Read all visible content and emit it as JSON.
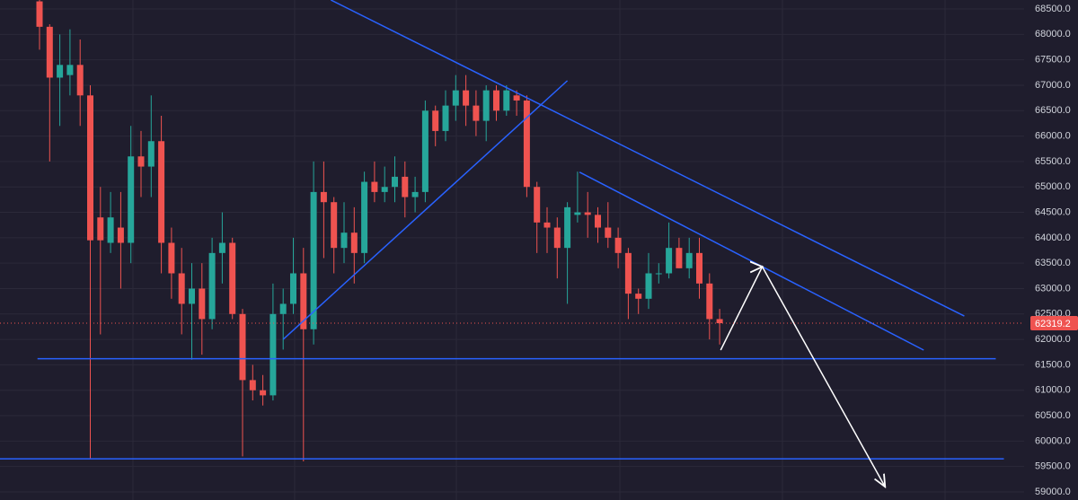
{
  "chart_data": {
    "type": "candlestick",
    "up_color": "#26a69a",
    "down_color": "#ef5350",
    "ylim": [
      58841,
      68677
    ],
    "yticks": [
      {
        "value": 59000,
        "label": "59000.0"
      },
      {
        "value": 59500,
        "label": "59500.0"
      },
      {
        "value": 60000,
        "label": "60000.0"
      },
      {
        "value": 60500,
        "label": "60500.0"
      },
      {
        "value": 61000,
        "label": "61000.0"
      },
      {
        "value": 61500,
        "label": "61500.0"
      },
      {
        "value": 62000,
        "label": "62000.0"
      },
      {
        "value": 62500,
        "label": "62500.0"
      },
      {
        "value": 63000,
        "label": "63000.0"
      },
      {
        "value": 63500,
        "label": "63500.0"
      },
      {
        "value": 64000,
        "label": "64000.0"
      },
      {
        "value": 64500,
        "label": "64500.0"
      },
      {
        "value": 65000,
        "label": "65000.0"
      },
      {
        "value": 65500,
        "label": "65500.0"
      },
      {
        "value": 66000,
        "label": "66000.0"
      },
      {
        "value": 66500,
        "label": "66500.0"
      },
      {
        "value": 67000,
        "label": "67000.0"
      },
      {
        "value": 67500,
        "label": "67500.0"
      },
      {
        "value": 68000,
        "label": "68000.0"
      },
      {
        "value": 68500,
        "label": "68500.0"
      }
    ],
    "grid": true,
    "open": [
      68650,
      68150,
      67150,
      67200,
      67400,
      66800,
      64400,
      63900,
      64200,
      63900,
      65600,
      65400,
      65900,
      63900,
      63300,
      62700,
      63000,
      62400,
      63700,
      63900,
      62500,
      61200,
      61000,
      60900,
      62500,
      62700,
      63300,
      62200,
      64900,
      64700,
      63800,
      64100,
      63700,
      65100,
      64900,
      65000,
      65200,
      64800,
      64900,
      66500,
      66100,
      66600,
      66900,
      66600,
      66300,
      66900,
      66500,
      66800,
      66700,
      65000,
      64300,
      64200,
      63800,
      64450,
      64500,
      64450,
      64200,
      64000,
      63700,
      62900,
      62800,
      63300,
      63300,
      63800,
      63400,
      63700,
      63100,
      62400
    ],
    "high": [
      68677,
      68200,
      68000,
      68100,
      67900,
      67000,
      65000,
      64900,
      64900,
      66200,
      66100,
      66800,
      66400,
      64200,
      63800,
      63500,
      63500,
      64000,
      64500,
      64000,
      62600,
      61500,
      61300,
      63100,
      63000,
      64000,
      63800,
      65500,
      65500,
      64800,
      64700,
      64600,
      65300,
      65500,
      65400,
      65600,
      65500,
      65200,
      66700,
      66600,
      66900,
      67200,
      67200,
      66900,
      67000,
      67000,
      67000,
      66900,
      66800,
      65100,
      64600,
      64400,
      64700,
      65300,
      64900,
      64600,
      64700,
      64200,
      63800,
      63000,
      63700,
      63500,
      64300,
      64000,
      64000,
      64000,
      63300,
      62600
    ],
    "low": [
      67700,
      65500,
      66200,
      66800,
      66200,
      59650,
      62100,
      63700,
      63000,
      63500,
      64800,
      64800,
      63300,
      62800,
      62100,
      61600,
      61700,
      62200,
      63100,
      62400,
      59700,
      60800,
      60700,
      60800,
      61800,
      62500,
      59600,
      61900,
      63600,
      63300,
      63500,
      63100,
      63500,
      64700,
      64700,
      64700,
      64400,
      64500,
      64700,
      65800,
      65900,
      66300,
      66200,
      66000,
      65900,
      66300,
      66400,
      66400,
      64800,
      63700,
      63700,
      63200,
      62700,
      64300,
      64000,
      63900,
      63800,
      63400,
      62400,
      62500,
      62600,
      63100,
      63200,
      63400,
      63200,
      62800,
      62000,
      61900
    ],
    "close": [
      68150,
      67150,
      67400,
      67400,
      66800,
      63950,
      63950,
      64400,
      63900,
      65600,
      65400,
      65900,
      63900,
      63300,
      62700,
      63000,
      62400,
      63700,
      63900,
      62500,
      61200,
      61000,
      60900,
      62500,
      62700,
      63300,
      62200,
      64900,
      64700,
      63800,
      64100,
      63700,
      65100,
      64900,
      65000,
      65200,
      64800,
      64900,
      66500,
      66100,
      66600,
      66900,
      66600,
      66300,
      66900,
      66500,
      66900,
      66700,
      65000,
      64300,
      64200,
      63800,
      64600,
      64500,
      64450,
      64200,
      64000,
      63700,
      62900,
      62800,
      63300,
      63300,
      63800,
      63400,
      63700,
      63100,
      62400,
      62319.2
    ],
    "last_price": 62319.2,
    "trendlines": [
      {
        "color": "#2962ff",
        "x": [
          28.7,
          91.1
        ],
        "y": [
          68677,
          62460
        ]
      },
      {
        "color": "#2962ff",
        "x": [
          24.0,
          52.0
        ],
        "y": [
          62000,
          67090
        ]
      },
      {
        "color": "#2962ff",
        "x": [
          53.2,
          87.1
        ],
        "y": [
          65290,
          61790
        ]
      },
      {
        "color": "#2962ff",
        "x": [
          -0.2,
          94.2
        ],
        "y": [
          61620,
          61620
        ]
      },
      {
        "color": "#2962ff",
        "x": [
          -3.9,
          95.0
        ],
        "y": [
          59650,
          59650
        ]
      }
    ],
    "arrows": {
      "color": "#ffffff",
      "x": [
        67.1,
        71.2,
        83.3
      ],
      "y": [
        61790,
        63430,
        59100
      ]
    }
  }
}
